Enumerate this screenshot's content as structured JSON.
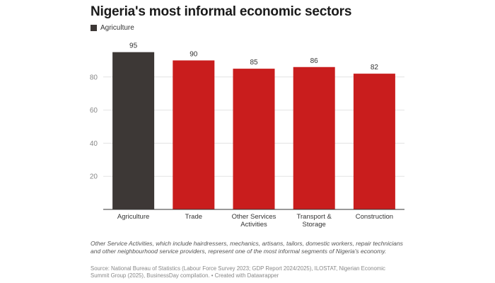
{
  "title": "Nigeria's most informal economic sectors",
  "legend": {
    "label": "Agriculture",
    "color": "#3d3836"
  },
  "colors": {
    "highlight": "#3d3836",
    "default": "#c91d1d"
  },
  "chart_data": {
    "type": "bar",
    "title": "Nigeria's most informal economic sectors",
    "categories": [
      "Agriculture",
      "Trade",
      "Other Services Activities",
      "Transport & Storage",
      "Construction"
    ],
    "category_lines": [
      [
        "Agriculture"
      ],
      [
        "Trade"
      ],
      [
        "Other Services",
        "Activities"
      ],
      [
        "Transport &",
        "Storage"
      ],
      [
        "Construction"
      ]
    ],
    "values": [
      95,
      90,
      85,
      86,
      82
    ],
    "highlighted": [
      "Agriculture"
    ],
    "ylim": [
      0,
      100
    ],
    "yticks": [
      20,
      40,
      60,
      80
    ],
    "grid": true,
    "data_labels": true,
    "legend_position": "top-left"
  },
  "note": "Other Service Activities, which include hairdressers, mechanics, artisans, tailors, domestic workers, repair technicians and other neighbourhood service providers, represent one of the most informal segments of Nigeria's economy.",
  "source": "Source: National Bureau of Statistics (Labour Force Survey 2023; GDP Report 2024/2025), ILOSTAT, Nigerian Economic Summit Group (2025), BusinessDay compilation. • Created with Datawrapper"
}
